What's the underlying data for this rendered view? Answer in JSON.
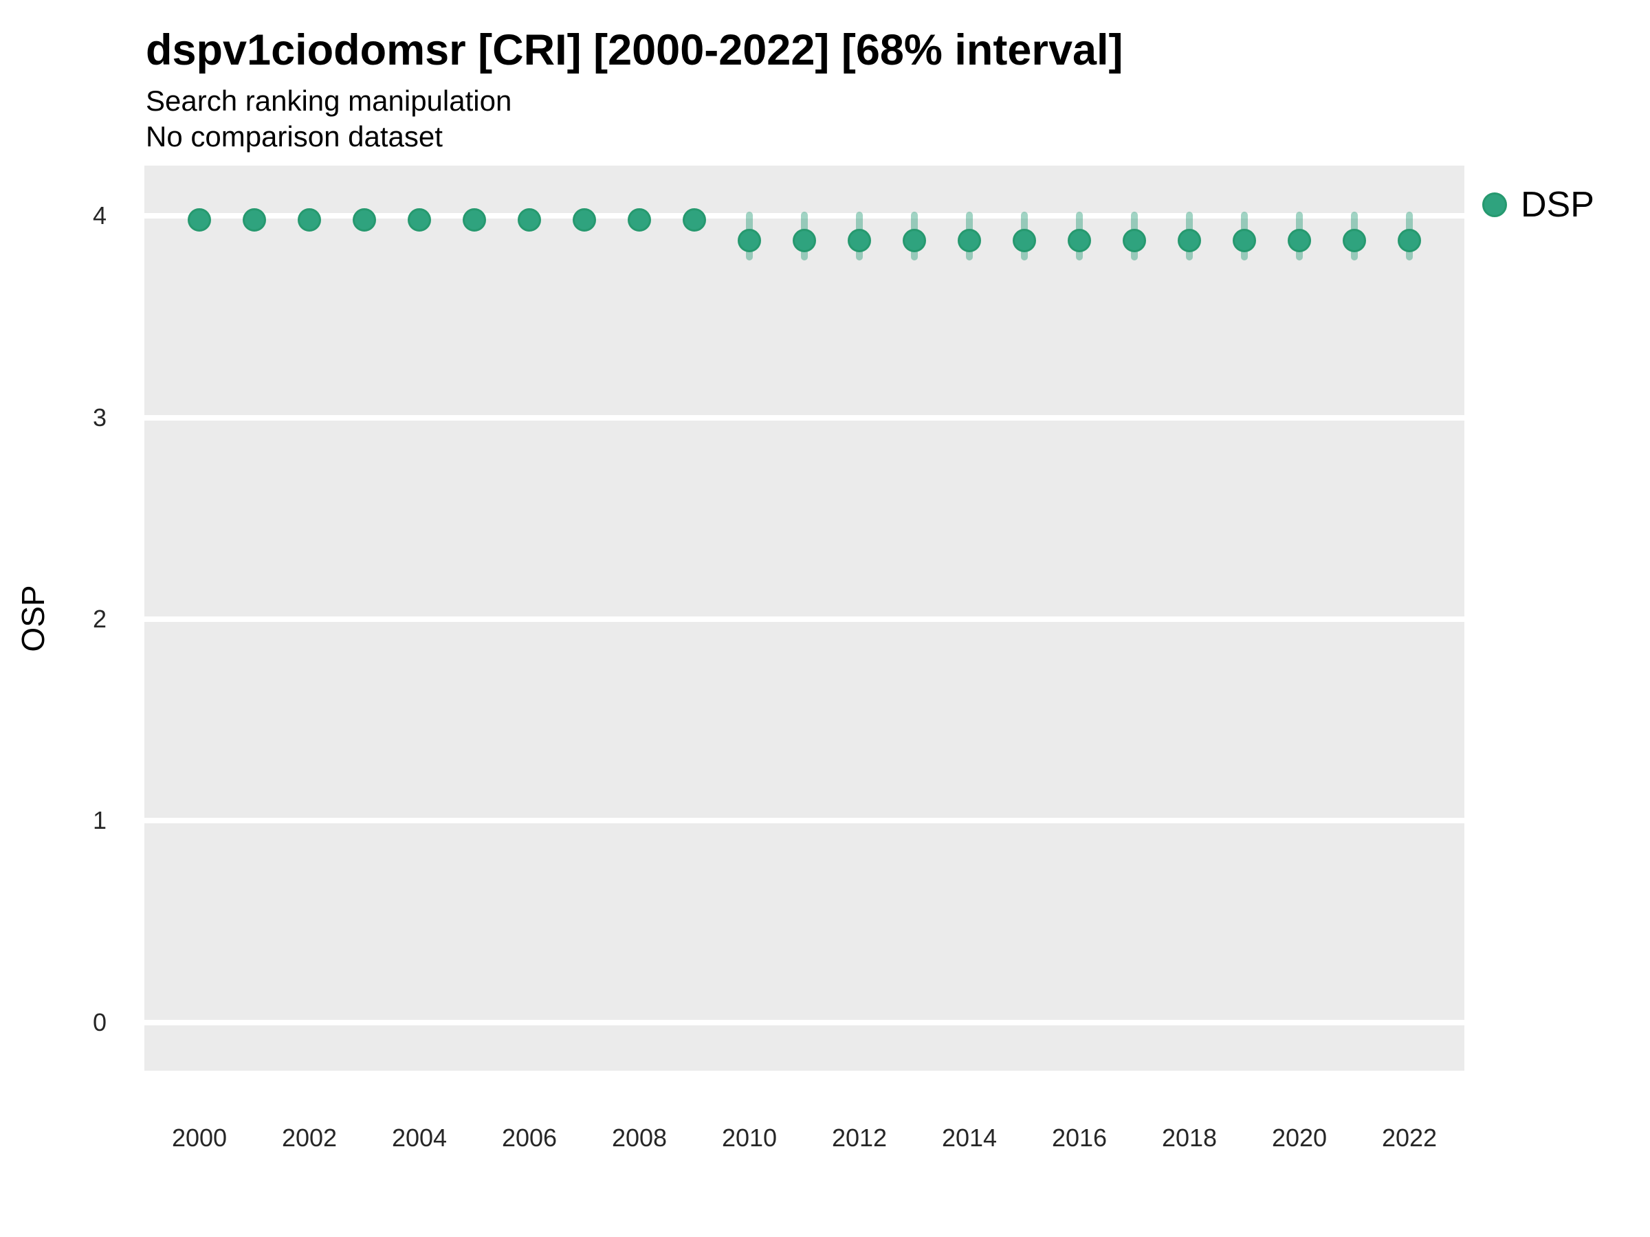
{
  "header": {
    "title": "dspv1ciodomsr [CRI] [2000-2022] [68% interval]",
    "subtitle1": "Search ranking manipulation",
    "subtitle2": "No comparison dataset"
  },
  "axes": {
    "y_label": "OSP",
    "y_ticks": [
      0,
      1,
      2,
      3,
      4
    ],
    "x_ticks": [
      2000,
      2002,
      2004,
      2006,
      2008,
      2010,
      2012,
      2014,
      2016,
      2018,
      2020,
      2022
    ]
  },
  "legend": {
    "items": [
      {
        "label": "DSP",
        "marker": "filled-circle",
        "color": "#2fa37e"
      }
    ]
  },
  "colors": {
    "panel_background": "#ebebeb",
    "gridline": "#ffffff",
    "point_fill": "#2fa37e",
    "point_stroke": "#26996f",
    "interval_bar": "rgba(47,160,124,0.45)",
    "tick_text": "#262626",
    "title_text": "#000000"
  },
  "chart_data": {
    "type": "scatter",
    "subtype": "pointrange",
    "title": "dspv1ciodomsr [CRI] [2000-2022] [68% interval]",
    "subtitle": [
      "Search ranking manipulation",
      "No comparison dataset"
    ],
    "xlabel": "",
    "ylabel": "OSP",
    "xlim": [
      1999,
      2023
    ],
    "ylim": [
      -0.24,
      4.25
    ],
    "grid": "major y gridlines only, white on gray panel",
    "legend_position": "right-top",
    "interval_level": "68%",
    "series": [
      {
        "name": "DSP",
        "x": [
          2000,
          2001,
          2002,
          2003,
          2004,
          2005,
          2006,
          2007,
          2008,
          2009,
          2010,
          2011,
          2012,
          2013,
          2014,
          2015,
          2016,
          2017,
          2018,
          2019,
          2020,
          2021,
          2022
        ],
        "y": [
          3.98,
          3.98,
          3.98,
          3.98,
          3.98,
          3.98,
          3.98,
          3.98,
          3.98,
          3.98,
          3.88,
          3.88,
          3.88,
          3.88,
          3.88,
          3.88,
          3.88,
          3.88,
          3.88,
          3.88,
          3.88,
          3.88,
          3.88
        ],
        "y_low": [
          3.96,
          3.96,
          3.96,
          3.96,
          3.96,
          3.96,
          3.96,
          3.96,
          3.96,
          3.96,
          3.78,
          3.78,
          3.78,
          3.78,
          3.78,
          3.78,
          3.78,
          3.78,
          3.78,
          3.78,
          3.78,
          3.78,
          3.78
        ],
        "y_high": [
          4.0,
          4.0,
          4.0,
          4.0,
          4.0,
          4.0,
          4.0,
          4.0,
          4.0,
          4.0,
          4.02,
          4.02,
          4.02,
          4.02,
          4.02,
          4.02,
          4.02,
          4.02,
          4.02,
          4.02,
          4.02,
          4.02,
          4.02
        ]
      }
    ]
  }
}
